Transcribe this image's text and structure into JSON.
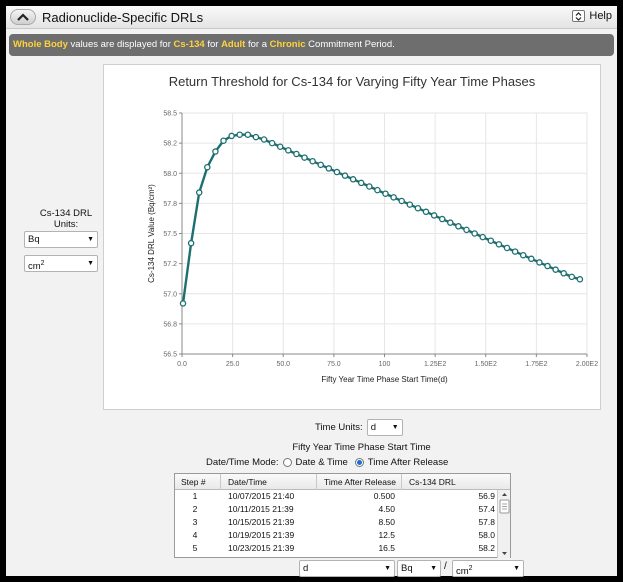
{
  "window": {
    "title": "Radionuclide-Specific DRLs",
    "help_label": "Help"
  },
  "banner": {
    "parts": [
      "Whole Body",
      " values are displayed for ",
      "Cs-134",
      " for ",
      "Adult",
      " for a ",
      "Chronic",
      " Commitment Period."
    ]
  },
  "units_panel": {
    "title_line1": "Cs-134 DRL",
    "title_line2": "Units:",
    "activity_unit": "Bq",
    "area_unit": "cm",
    "area_exp": "2"
  },
  "time_controls": {
    "time_units_label": "Time Units:",
    "time_units_value": "d",
    "caption": "Fifty Year Time Phase Start Time",
    "mode_label": "Date/Time Mode:",
    "mode_options": [
      "Date & Time",
      "Time After Release"
    ],
    "mode_selected": "Time After Release"
  },
  "table": {
    "headers": [
      "Step #",
      "Date/Time",
      "Time After Release",
      "Cs-134 DRL"
    ],
    "rows": [
      [
        "1",
        "10/07/2015 21:40",
        "0.500",
        "56.9"
      ],
      [
        "2",
        "10/11/2015 21:39",
        "4.50",
        "57.4"
      ],
      [
        "3",
        "10/15/2015 21:39",
        "8.50",
        "57.8"
      ],
      [
        "4",
        "10/19/2015 21:39",
        "12.5",
        "58.0"
      ],
      [
        "5",
        "10/23/2015 21:39",
        "16.5",
        "58.2"
      ]
    ]
  },
  "bottom_units": {
    "time": "d",
    "activity": "Bq",
    "separator": "/",
    "area": "cm",
    "area_exp": "2"
  },
  "colors": {
    "series": "#1e6f6f",
    "marker_fill": "#ffffff",
    "banner_highlight": "#ffd23a",
    "banner_bg": "#6e6e6e"
  },
  "chart_data": {
    "type": "line",
    "title": "Return Threshold for Cs-134 for Varying Fifty Year Time Phases",
    "xlabel": "Fifty Year Time Phase Start Time(d)",
    "ylabel": "Cs-134 DRL Value (Bq/cm²)",
    "xlim": [
      0,
      200
    ],
    "ylim": [
      56.5,
      58.5
    ],
    "xticks": [
      "0.0",
      "25.0",
      "50.0",
      "75.0",
      "100",
      "1.25E2",
      "1.50E2",
      "1.75E2",
      "2.00E2"
    ],
    "yticks": [
      "56.5",
      "56.8",
      "57.0",
      "57.2",
      "57.5",
      "57.8",
      "58.0",
      "58.2",
      "58.5"
    ],
    "grid": true,
    "series": [
      {
        "x": [
          0.5,
          4.5,
          8.5,
          12.5,
          16.5,
          20.5,
          24.5,
          28.5,
          32.5,
          36.5,
          40.5,
          44.5,
          48.5,
          52.5,
          56.5,
          60.5,
          64.5,
          68.5,
          72.5,
          76.5,
          80.5,
          84.5,
          88.5,
          92.5,
          96.5,
          100.5,
          104.5,
          108.5,
          112.5,
          116.5,
          120.5,
          124.5,
          128.5,
          132.5,
          136.5,
          140.5,
          144.5,
          148.5,
          152.5,
          156.5,
          160.5,
          164.5,
          168.5,
          172.5,
          176.5,
          180.5,
          184.5,
          188.5,
          192.5,
          196.5
        ],
        "y": [
          56.92,
          57.42,
          57.84,
          58.05,
          58.18,
          58.27,
          58.31,
          58.32,
          58.32,
          58.3,
          58.28,
          58.25,
          58.22,
          58.19,
          58.16,
          58.13,
          58.1,
          58.07,
          58.04,
          58.01,
          57.98,
          57.95,
          57.92,
          57.89,
          57.86,
          57.83,
          57.8,
          57.77,
          57.74,
          57.71,
          57.68,
          57.65,
          57.62,
          57.59,
          57.56,
          57.53,
          57.5,
          57.47,
          57.44,
          57.41,
          57.38,
          57.35,
          57.32,
          57.29,
          57.26,
          57.23,
          57.2,
          57.17,
          57.14,
          57.12
        ]
      }
    ]
  }
}
